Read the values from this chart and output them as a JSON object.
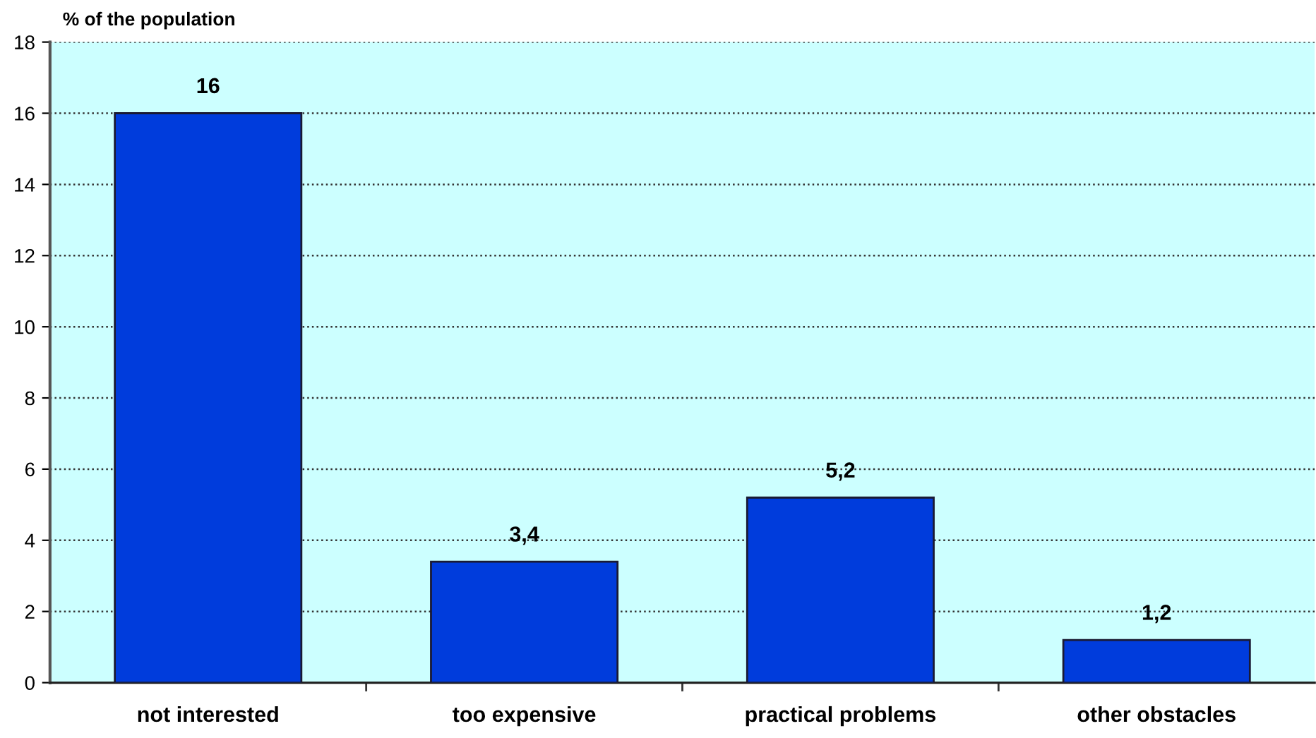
{
  "chart_data": {
    "type": "bar",
    "ylabel": "% of the population",
    "categories": [
      "not interested",
      "too expensive",
      "practical problems",
      "other obstacles"
    ],
    "values": [
      16,
      3.4,
      5.2,
      1.2
    ],
    "value_labels": [
      "16",
      "3,4",
      "5,2",
      "1,2"
    ],
    "color": "#003cdc",
    "ylim": [
      0,
      18
    ],
    "yticks": [
      0,
      2,
      4,
      6,
      8,
      10,
      12,
      14,
      16,
      18
    ],
    "grid": "y",
    "line_style": "dotted"
  }
}
